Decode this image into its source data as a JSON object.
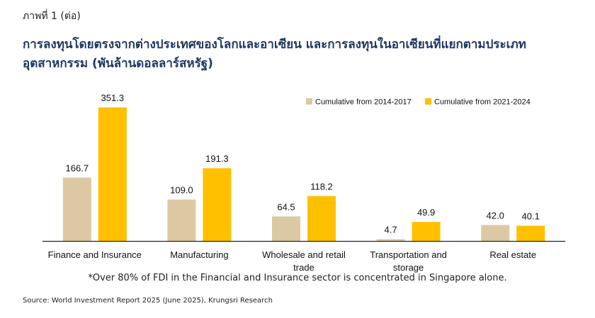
{
  "figure_label": "ภาพที่ 1 (ต่อ)",
  "title_line1": "การลงทุนโดยตรงจากต่างประเทศของโลกและอาเซียน และการลงทุนในอาเซียนที่แยกตามประเภท",
  "title_line2": "อุตสาหกรรม (พันล้านดอลลาร์สหรัฐ)",
  "note": "*Over 80% of FDI in the Financial and Insurance sector is concentrated in Singapore alone.",
  "source": "Source: World Investment Report 2025 (June 2025), Krungsri Research",
  "chart_data": {
    "type": "bar",
    "categories": [
      [
        "Finance and Insurance"
      ],
      [
        "Manufacturing"
      ],
      [
        "Wholesale and retail",
        "trade"
      ],
      [
        "Transportation and",
        "storage"
      ],
      [
        "Real estate"
      ]
    ],
    "series": [
      {
        "name": "Cumulative from 2014-2017",
        "color": "#dcc9a3",
        "values": [
          166.7,
          109.0,
          64.5,
          4.7,
          42.0
        ]
      },
      {
        "name": "Cumulative from 2021-2024",
        "color": "#ffc000",
        "values": [
          351.3,
          191.3,
          118.2,
          49.9,
          40.1
        ]
      }
    ],
    "value_labels": [
      [
        "166.7",
        "109.0",
        "64.5",
        "4.7",
        "42.0"
      ],
      [
        "351.3",
        "191.3",
        "118.2",
        "49.9",
        "40.1"
      ]
    ],
    "legend_position": "top-right",
    "grid": false,
    "ylim": [
      0,
      351.3
    ]
  }
}
